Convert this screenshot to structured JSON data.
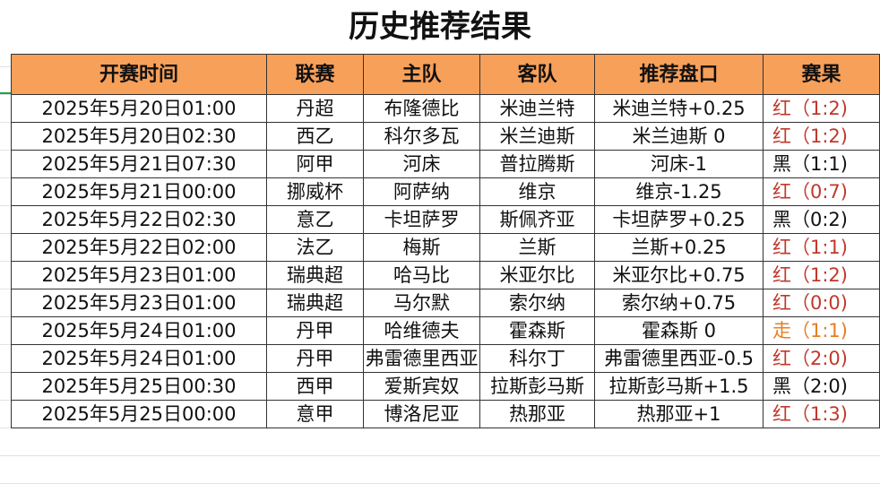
{
  "title": "历史推荐结果",
  "table": {
    "header": [
      "开赛时间",
      "联赛",
      "主队",
      "客队",
      "推荐盘口",
      "赛果"
    ],
    "rows": [
      [
        "2025年5月20日01:00",
        "丹超",
        "布隆德比",
        "米迪兰特",
        "米迪兰特+0.25",
        "红（1:2)"
      ],
      [
        "2025年5月20日02:30",
        "西乙",
        "科尔多瓦",
        "米兰迪斯",
        "米兰迪斯 0",
        "红（1:2)"
      ],
      [
        "2025年5月21日07:30",
        "阿甲",
        "河床",
        "普拉腾斯",
        "河床-1",
        "黑（1:1)"
      ],
      [
        "2025年5月21日00:00",
        "挪威杯",
        "阿萨纳",
        "维京",
        "维京-1.25",
        "红（0:7)"
      ],
      [
        "2025年5月22日02:30",
        "意乙",
        "卡坦萨罗",
        "斯佩齐亚",
        "卡坦萨罗+0.25",
        "黑（0:2)"
      ],
      [
        "2025年5月22日02:00",
        "法乙",
        "梅斯",
        "兰斯",
        "兰斯+0.25",
        "红（1:1)"
      ],
      [
        "2025年5月23日01:00",
        "瑞典超",
        "哈马比",
        "米亚尔比",
        "米亚尔比+0.75",
        "红（1:2)"
      ],
      [
        "2025年5月23日01:00",
        "瑞典超",
        "马尔默",
        "索尔纳",
        "索尔纳+0.75",
        "红（0:0)"
      ],
      [
        "2025年5月24日01:00",
        "丹甲",
        "哈维德夫",
        "霍森斯",
        "霍森斯 0",
        "走（1:1)"
      ],
      [
        "2025年5月24日01:00",
        "丹甲",
        "弗雷德里西亚",
        "科尔丁",
        "弗雷德里西亚-0.5",
        "红（2:0)"
      ],
      [
        "2025年5月25日00:30",
        "西甲",
        "爱斯宾奴",
        "拉斯彭马斯",
        "拉斯彭马斯+1.5",
        "黑（2:0)"
      ],
      [
        "2025年5月25日00:00",
        "意甲",
        "博洛尼亚",
        "热那亚",
        "热那亚+1",
        "红（1:3)"
      ]
    ],
    "result_colors": [
      "#c0392b",
      "#c0392b",
      "#111111",
      "#c0392b",
      "#111111",
      "#c0392b",
      "#c0392b",
      "#c0392b",
      "#e67e22",
      "#c0392b",
      "#111111",
      "#c0392b"
    ],
    "header_color": "#f7a05a"
  }
}
